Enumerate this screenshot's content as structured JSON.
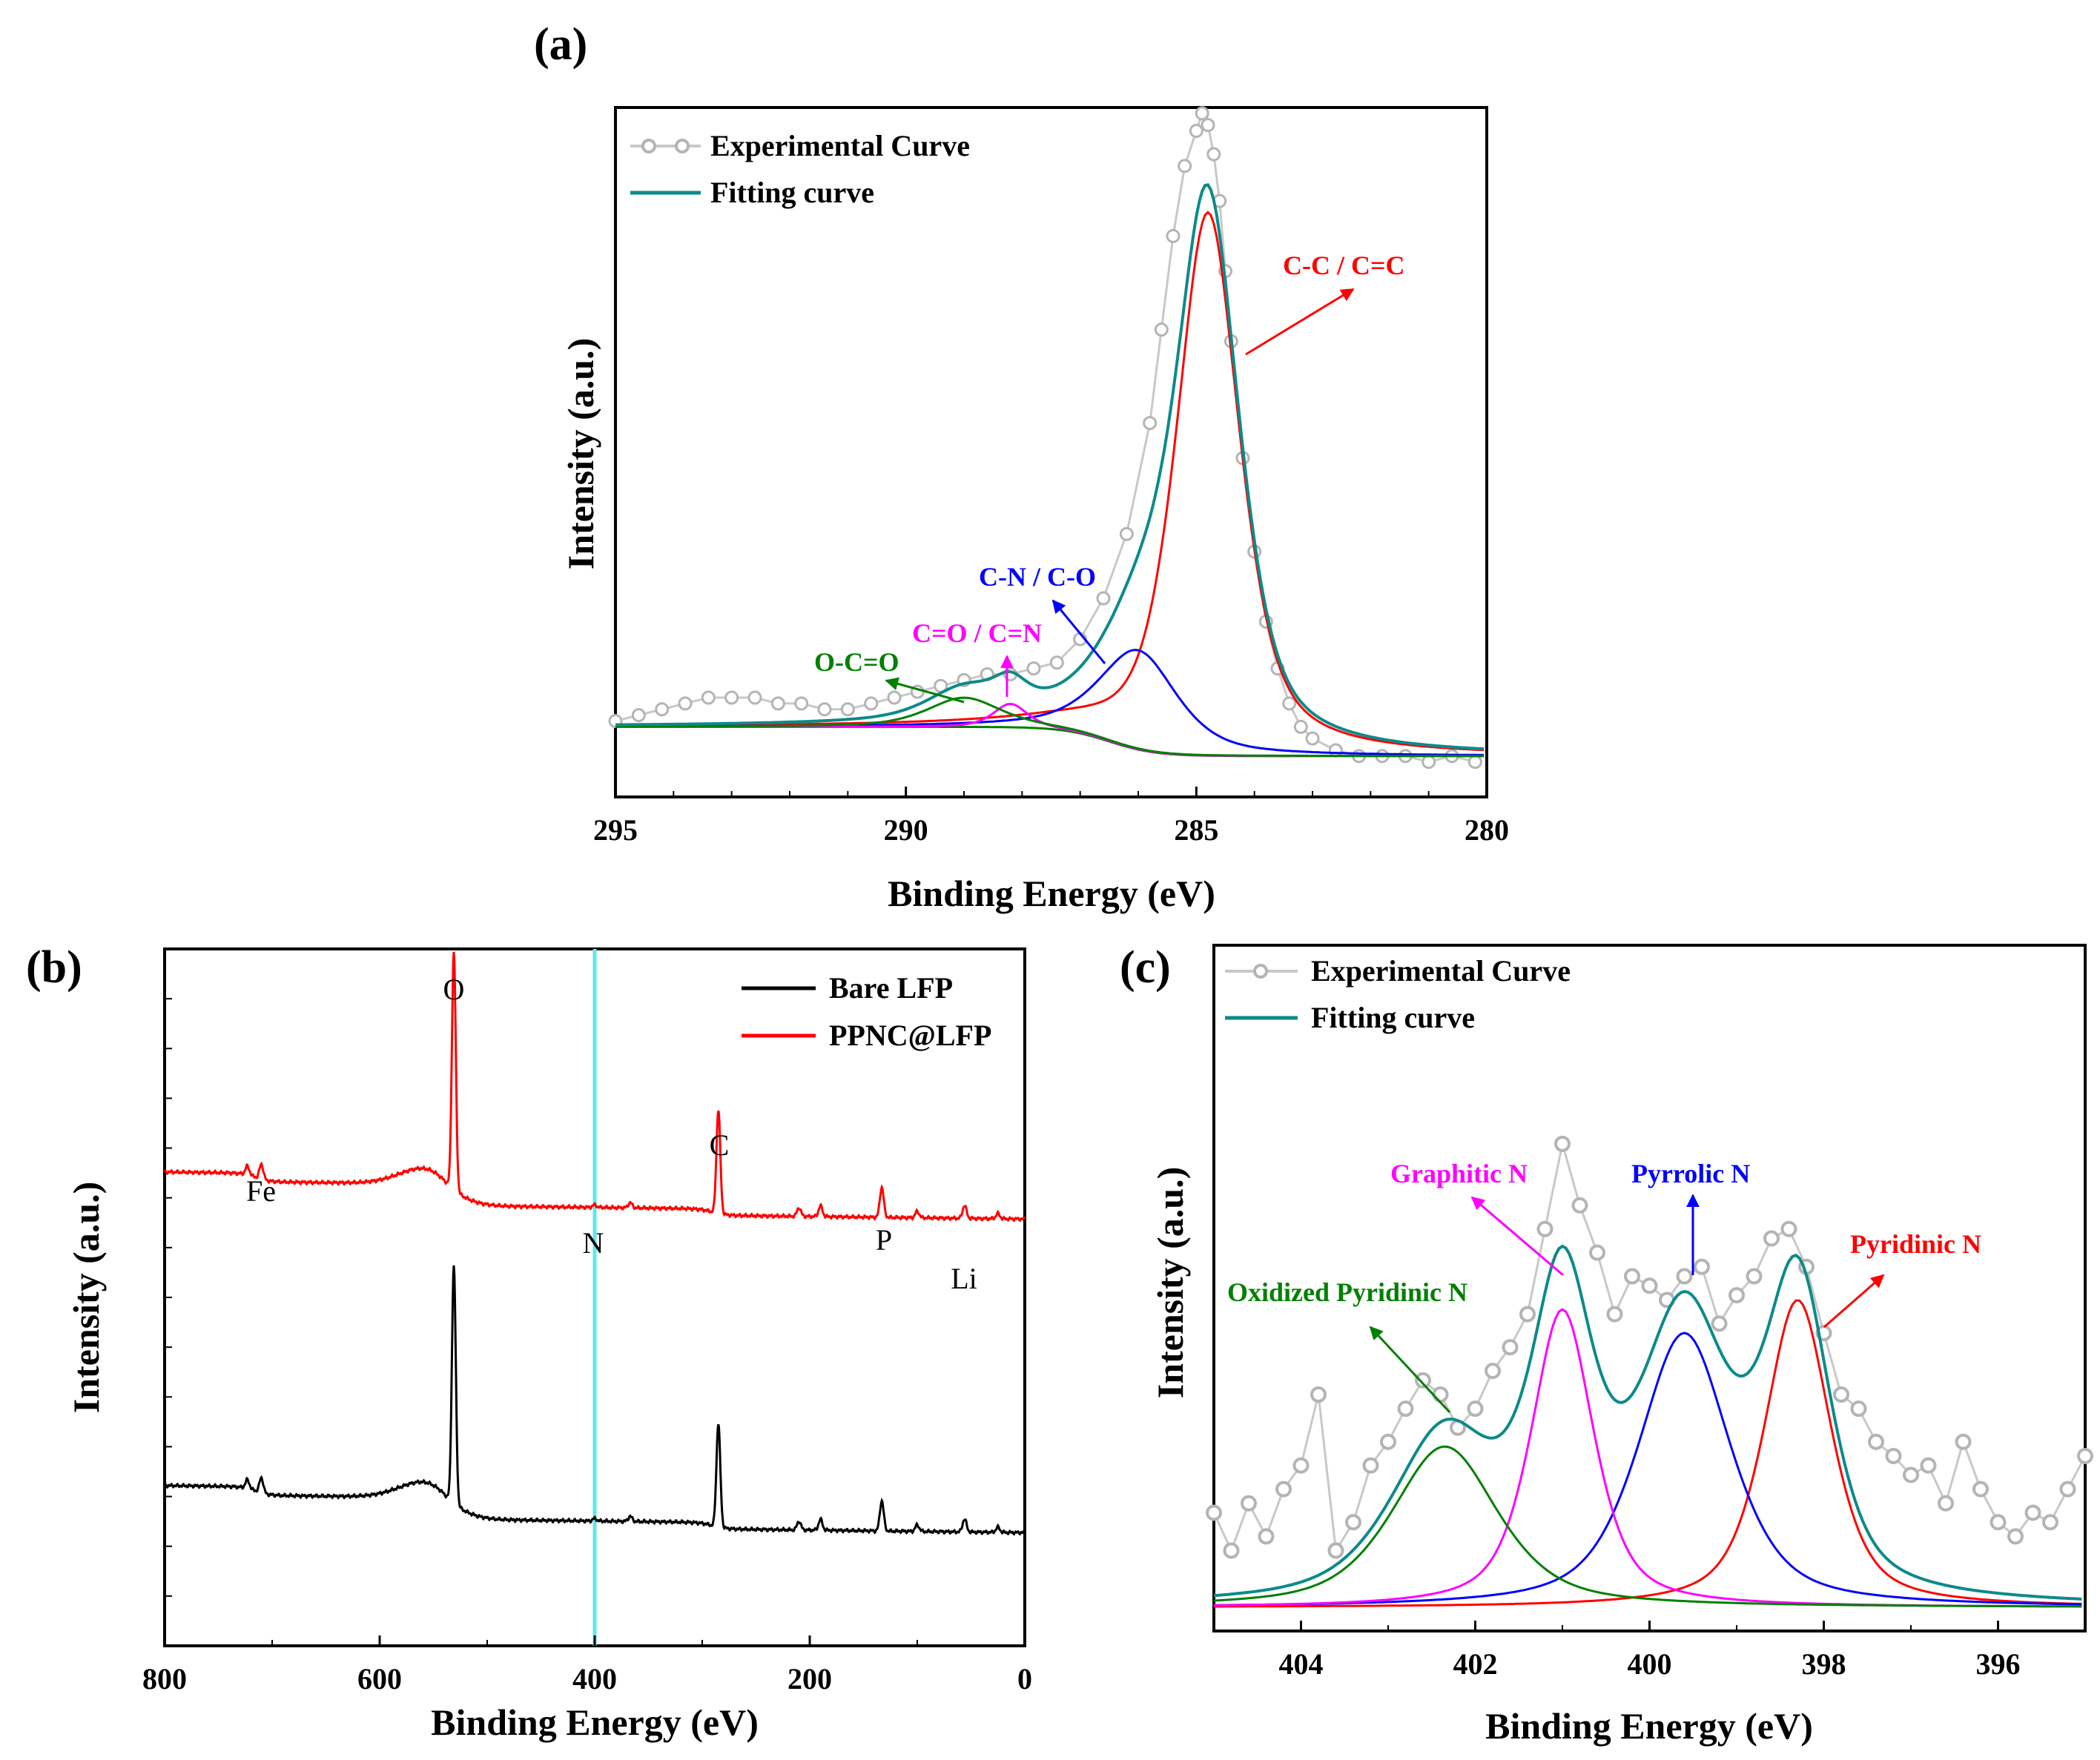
{
  "chart_data": [
    {
      "panel": "(a)",
      "type": "line",
      "xlabel": "Binding Energy (eV)",
      "ylabel": "Intensity (a.u.)",
      "xlim": [
        295,
        280
      ],
      "ylim": [
        -0.12,
        1.06
      ],
      "xticks": [
        295,
        290,
        285,
        280
      ],
      "legend": [
        "Experimental Curve",
        "Fitting curve"
      ],
      "legend_position": "top-left",
      "background": {
        "start": 0.0,
        "end": -0.05,
        "center": 286.5,
        "width": 1.6
      },
      "components": [
        {
          "name": "C-C / C=C",
          "center": 284.8,
          "amp": 0.93,
          "fwhm": 1.3,
          "color": "#ff0000"
        },
        {
          "name": "C-N / C-O",
          "center": 286.0,
          "amp": 0.17,
          "fwhm": 1.6,
          "color": "#0000ff"
        },
        {
          "name": "C=O / C=N",
          "center": 288.2,
          "amp": 0.04,
          "fwhm": 0.7,
          "color": "#ff00ff"
        },
        {
          "name": "O-C=O",
          "center": 289.0,
          "amp": 0.05,
          "fwhm": 1.5,
          "color": "#008000"
        }
      ],
      "experimental": {
        "x": [
          295.0,
          294.6,
          294.2,
          293.8,
          293.4,
          293.0,
          292.6,
          292.2,
          291.8,
          291.4,
          291.0,
          290.6,
          290.2,
          289.8,
          289.4,
          289.0,
          288.6,
          288.2,
          287.8,
          287.4,
          287.0,
          286.6,
          286.2,
          285.8,
          285.6,
          285.4,
          285.2,
          285.0,
          284.9,
          284.8,
          284.7,
          284.6,
          284.5,
          284.4,
          284.2,
          284.0,
          283.8,
          283.6,
          283.4,
          283.2,
          283.0,
          282.6,
          282.2,
          281.8,
          281.4,
          281.0,
          280.6,
          280.2
        ],
        "y": [
          0.01,
          0.02,
          0.03,
          0.04,
          0.05,
          0.05,
          0.05,
          0.04,
          0.04,
          0.03,
          0.03,
          0.04,
          0.05,
          0.06,
          0.07,
          0.08,
          0.09,
          0.09,
          0.1,
          0.11,
          0.15,
          0.22,
          0.33,
          0.52,
          0.68,
          0.84,
          0.96,
          1.02,
          1.05,
          1.03,
          0.98,
          0.9,
          0.78,
          0.66,
          0.46,
          0.3,
          0.18,
          0.1,
          0.04,
          0.0,
          -0.02,
          -0.04,
          -0.05,
          -0.05,
          -0.05,
          -0.06,
          -0.05,
          -0.06
        ]
      },
      "annotations": [
        "C-C / C=C",
        "C-N / C-O",
        "C=O / C=N",
        "O-C=O"
      ]
    },
    {
      "panel": "(b)",
      "type": "line",
      "xlabel": "Binding Energy (eV)",
      "ylabel": "Intensity (a.u.)",
      "xlim": [
        800,
        0
      ],
      "ylim": [
        0,
        1
      ],
      "xticks": [
        800,
        600,
        400,
        200,
        0
      ],
      "marker_line_x": 400,
      "legend": [
        "Bare LFP",
        "PPNC@LFP"
      ],
      "legend_position": "top-right",
      "series": [
        {
          "name": "Bare LFP",
          "color": "#000000",
          "offset": 0.15,
          "scale": 0.62
        },
        {
          "name": "PPNC@LFP",
          "color": "#ff0000",
          "offset": 0.6,
          "scale": 0.62
        }
      ],
      "peaks": [
        {
          "label": "Fe",
          "x": 710,
          "height": 0.035
        },
        {
          "label": "",
          "x": 723,
          "height": 0.02
        },
        {
          "label": "O",
          "x": 531,
          "height": 0.55
        },
        {
          "label": "N",
          "x": 400,
          "height": 0.006
        },
        {
          "label": "C",
          "x": 285,
          "height": 0.24
        },
        {
          "label": "P",
          "x": 133,
          "height": 0.07
        },
        {
          "label": "Li",
          "x": 56,
          "height": 0.03
        },
        {
          "label": "",
          "x": 190,
          "height": 0.025
        },
        {
          "label": "",
          "x": 210,
          "height": 0.02
        },
        {
          "label": "",
          "x": 367,
          "height": 0.012
        },
        {
          "label": "",
          "x": 100,
          "height": 0.015
        },
        {
          "label": "",
          "x": 25,
          "height": 0.012
        }
      ],
      "element_labels": [
        "Fe",
        "O",
        "N",
        "C",
        "P",
        "Li"
      ]
    },
    {
      "panel": "(c)",
      "type": "line",
      "xlabel": "Binding Energy (eV)",
      "ylabel": "Intensity (a.u.)",
      "xlim": [
        405,
        395
      ],
      "ylim": [
        -0.05,
        1.4
      ],
      "xticks": [
        404,
        402,
        400,
        398,
        396
      ],
      "legend": [
        "Experimental Curve",
        "Fitting curve"
      ],
      "legend_position": "top-left",
      "components": [
        {
          "name": "Pyridinic N",
          "center": 398.3,
          "amp": 0.65,
          "fwhm": 0.9,
          "color": "#ff0000"
        },
        {
          "name": "Pyrrolic N",
          "center": 399.6,
          "amp": 0.58,
          "fwhm": 1.25,
          "color": "#0000ff"
        },
        {
          "name": "Graphitic N",
          "center": 401.0,
          "amp": 0.63,
          "fwhm": 0.85,
          "color": "#ff00ff"
        },
        {
          "name": "Oxidized Pyridinic N",
          "center": 402.35,
          "amp": 0.34,
          "fwhm": 1.45,
          "color": "#008000"
        }
      ],
      "experimental": {
        "x": [
          405.0,
          404.8,
          404.6,
          404.4,
          404.2,
          404.0,
          403.8,
          403.6,
          403.4,
          403.2,
          403.0,
          402.8,
          402.6,
          402.4,
          402.2,
          402.0,
          401.8,
          401.6,
          401.4,
          401.2,
          401.0,
          400.8,
          400.6,
          400.4,
          400.2,
          400.0,
          399.8,
          399.6,
          399.4,
          399.2,
          399.0,
          398.8,
          398.6,
          398.4,
          398.2,
          398.0,
          397.8,
          397.6,
          397.4,
          397.2,
          397.0,
          396.8,
          396.6,
          396.4,
          396.2,
          396.0,
          395.8,
          395.6,
          395.4,
          395.2,
          395.0
        ],
        "y": [
          0.2,
          0.12,
          0.22,
          0.15,
          0.25,
          0.3,
          0.45,
          0.12,
          0.18,
          0.3,
          0.35,
          0.42,
          0.48,
          0.45,
          0.38,
          0.42,
          0.5,
          0.55,
          0.62,
          0.8,
          0.98,
          0.85,
          0.75,
          0.62,
          0.7,
          0.68,
          0.65,
          0.7,
          0.72,
          0.6,
          0.66,
          0.7,
          0.78,
          0.8,
          0.72,
          0.58,
          0.45,
          0.42,
          0.35,
          0.32,
          0.28,
          0.3,
          0.22,
          0.35,
          0.25,
          0.18,
          0.15,
          0.2,
          0.18,
          0.25,
          0.32
        ]
      },
      "annotations": [
        "Graphitic N",
        "Pyrrolic N",
        "Pyridinic N",
        "Oxidized Pyridinic N"
      ]
    }
  ]
}
